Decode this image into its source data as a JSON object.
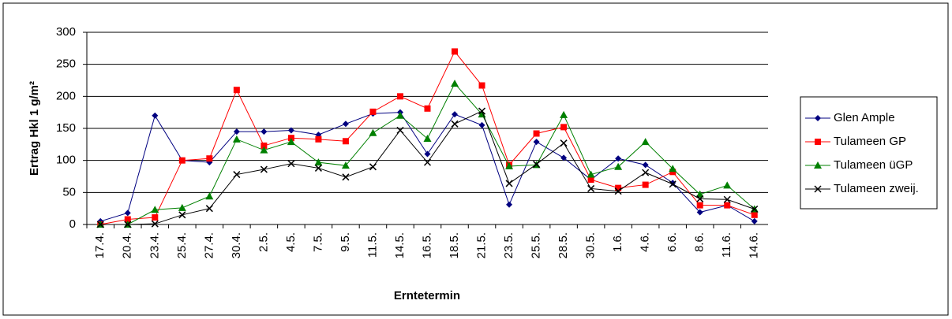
{
  "chart_data": {
    "type": "line",
    "y_label": "Ertrag Hkl 1 g/m²",
    "x_label": "Erntetermin",
    "categories": [
      "17.4.",
      "20.4.",
      "23.4.",
      "25.4.",
      "27.4.",
      "30.4.",
      "2.5.",
      "4.5.",
      "7.5.",
      "9.5.",
      "11.5.",
      "14.5.",
      "16.5.",
      "18.5.",
      "21.5.",
      "23.5.",
      "25.5.",
      "28.5.",
      "30.5.",
      "1.6.",
      "4.6.",
      "6.6.",
      "8.6.",
      "11.6.",
      "14.6."
    ],
    "series": [
      {
        "name": "Glen Ample",
        "color": "#000080",
        "marker": "diamond",
        "values": [
          5,
          18,
          170,
          100,
          97,
          145,
          145,
          147,
          140,
          157,
          173,
          175,
          110,
          172,
          155,
          31,
          129,
          104,
          70,
          103,
          93,
          65,
          19,
          30,
          5
        ]
      },
      {
        "name": "Tulameen GP",
        "color": "#ff0000",
        "marker": "square",
        "values": [
          0,
          8,
          11,
          100,
          103,
          210,
          123,
          135,
          133,
          130,
          176,
          200,
          181,
          270,
          217,
          93,
          142,
          152,
          70,
          57,
          62,
          82,
          30,
          30,
          15
        ]
      },
      {
        "name": "Tulameen üGP",
        "color": "#008000",
        "marker": "triangle",
        "values": [
          0,
          0,
          23,
          26,
          44,
          133,
          116,
          129,
          97,
          92,
          143,
          170,
          134,
          220,
          172,
          91,
          93,
          171,
          78,
          90,
          129,
          87,
          47,
          61,
          24
        ]
      },
      {
        "name": "Tulameen zweij.",
        "color": "#000000",
        "marker": "x",
        "values": [
          0,
          0,
          1,
          15,
          25,
          78,
          86,
          95,
          88,
          74,
          90,
          147,
          97,
          157,
          177,
          64,
          94,
          127,
          56,
          52,
          81,
          63,
          40,
          39,
          24
        ]
      }
    ],
    "ylim": [
      0,
      300
    ],
    "yticks": [
      0,
      50,
      100,
      150,
      200,
      250,
      300
    ],
    "grid": true
  }
}
